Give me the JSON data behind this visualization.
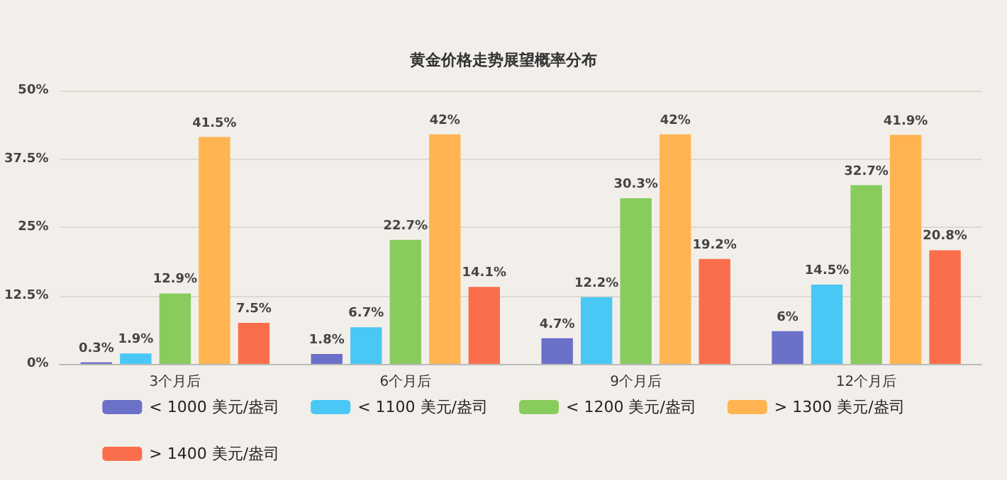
{
  "chart_data": {
    "type": "bar",
    "title": "黄金价格走势展望概率分布",
    "categories": [
      "3个月后",
      "6个月后",
      "9个月后",
      "12个月后"
    ],
    "series": [
      {
        "name": "< 1000 美元/盎司",
        "color": "#6b70c8",
        "values": [
          0.3,
          1.8,
          4.7,
          6
        ],
        "value_labels": [
          "0.3%",
          "1.8%",
          "4.7%",
          "6%"
        ]
      },
      {
        "name": "< 1100 美元/盎司",
        "color": "#4ac8f5",
        "values": [
          1.9,
          6.7,
          12.2,
          14.5
        ],
        "value_labels": [
          "1.9%",
          "6.7%",
          "12.2%",
          "14.5%"
        ]
      },
      {
        "name": "< 1200 美元/盎司",
        "color": "#88cc5e",
        "values": [
          12.9,
          22.7,
          30.3,
          32.7
        ],
        "value_labels": [
          "12.9%",
          "22.7%",
          "30.3%",
          "32.7%"
        ]
      },
      {
        "name": "> 1300 美元/盎司",
        "color": "#ffb451",
        "values": [
          41.5,
          42,
          42,
          41.9
        ],
        "value_labels": [
          "41.5%",
          "42%",
          "42%",
          "41.9%"
        ]
      },
      {
        "name": "> 1400 美元/盎司",
        "color": "#fb6e4c",
        "values": [
          7.5,
          14.1,
          19.2,
          20.8
        ],
        "value_labels": [
          "7.5%",
          "14.1%",
          "19.2%",
          "20.8%"
        ]
      }
    ],
    "ylim": [
      0,
      50
    ],
    "yticks": [
      {
        "value": 0,
        "label": "0%"
      },
      {
        "value": 12.5,
        "label": "12.5%"
      },
      {
        "value": 25,
        "label": "25%"
      },
      {
        "value": 37.5,
        "label": "37.5%"
      },
      {
        "value": 50,
        "label": "50%"
      }
    ],
    "grid": "y",
    "legend": "bottom"
  }
}
